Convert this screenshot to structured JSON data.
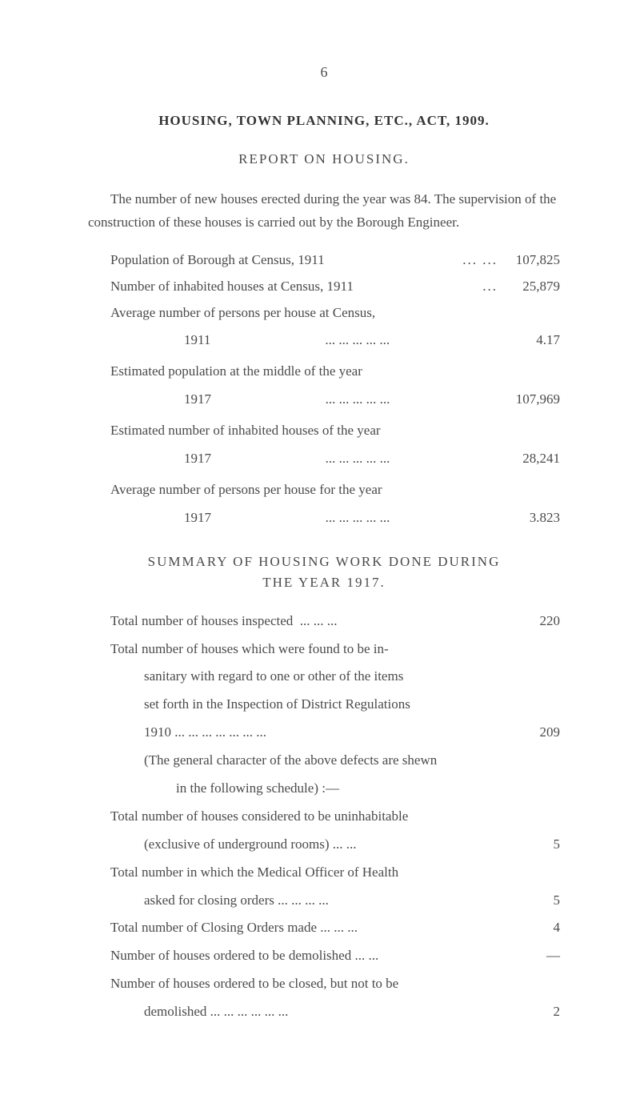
{
  "pageNumber": "6",
  "title": "HOUSING, TOWN PLANNING, ETC., ACT, 1909.",
  "subtitle": "REPORT ON HOUSING.",
  "introPara": "The number of new houses erected during the year was 84. The supervision of the construction of these houses is carried out by the Borough Engineer.",
  "stats": [
    {
      "label": "Population of Borough at Census, 1911",
      "dots": "...   ...",
      "value": "107,825"
    },
    {
      "label": "Number of inhabited houses at Census, 1911",
      "dots": "...",
      "value": "25,879"
    }
  ],
  "avg1": {
    "lead": "Average number of persons per house at Census,",
    "year": "1911",
    "dots": "...   ...   ...   ...   ...",
    "value": "4.17"
  },
  "est1": {
    "lead": "Estimated population at the middle of the year",
    "year": "1917",
    "dots": "...   ...   ...   ...   ...",
    "value": "107,969"
  },
  "est2": {
    "lead": "Estimated number of inhabited houses of the year",
    "year": "1917",
    "dots": "...   ...   ...   ...   ...",
    "value": "28,241"
  },
  "avg2": {
    "lead": "Average number of persons per house for the year",
    "year": "1917",
    "dots": "...   ...   ...   ...   ...",
    "value": "3.823"
  },
  "summaryHead": "SUMMARY OF HOUSING WORK DONE DURING",
  "summarySub": "THE YEAR 1917.",
  "items": [
    {
      "text": "Total number of houses inspected",
      "dots": "...   ...   ...",
      "value": "220"
    },
    {
      "text": "Total number of houses which were found to be in-",
      "value": ""
    },
    {
      "text2": "sanitary with regard to one or other of the items",
      "value": ""
    },
    {
      "text2": "set forth in the Inspection of District Regulations",
      "value": ""
    },
    {
      "text2b": "1910 ...   ...   ...   ...   ...   ...   ...",
      "value": "209"
    },
    {
      "paren": "(The general character of the above defects are shewn",
      "value": ""
    },
    {
      "paren2": "in the following schedule) :—",
      "value": ""
    },
    {
      "text": "Total number of houses considered to be uninhabitable",
      "value": ""
    },
    {
      "text2b": "(exclusive of underground rooms)        ...   ...",
      "value": "5"
    },
    {
      "text": "Total number in which the Medical Officer of Health",
      "value": ""
    },
    {
      "text2b": "asked for closing orders   ...   ...   ...   ...",
      "value": "5"
    },
    {
      "text": "Total number of Closing Orders made  ...   ...   ...",
      "value": "4"
    },
    {
      "text": "Number of houses ordered to be demolished   ...   ...",
      "value": "—"
    },
    {
      "text": "Number of houses ordered to be closed, but not to be",
      "value": ""
    },
    {
      "text2b": "demolished ...   ...   ...   ...   ...   ...",
      "value": "2"
    }
  ]
}
